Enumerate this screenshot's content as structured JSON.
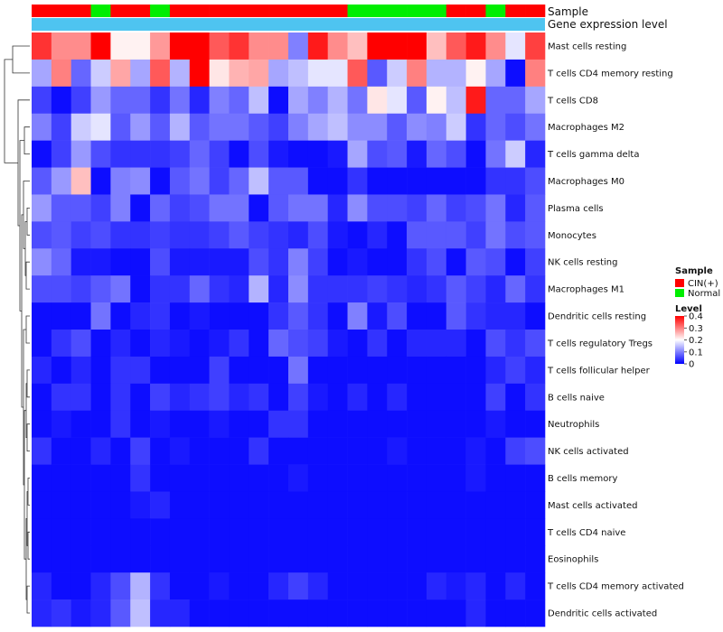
{
  "chart_data": {
    "type": "heatmap",
    "tracks": {
      "sample_label": "Sample",
      "expression_label": "Gene expression level"
    },
    "column_samples": [
      "CIN(+)",
      "CIN(+)",
      "CIN(+)",
      "Normal",
      "CIN(+)",
      "CIN(+)",
      "Normal",
      "CIN(+)",
      "CIN(+)",
      "CIN(+)",
      "CIN(+)",
      "CIN(+)",
      "CIN(+)",
      "CIN(+)",
      "CIN(+)",
      "CIN(+)",
      "Normal",
      "Normal",
      "Normal",
      "Normal",
      "Normal",
      "CIN(+)",
      "CIN(+)",
      "Normal",
      "CIN(+)",
      "CIN(+)"
    ],
    "rows": [
      {
        "name": "Mast cells resting",
        "values": [
          0.36,
          0.29,
          0.29,
          0.4,
          0.21,
          0.21,
          0.28,
          0.4,
          0.4,
          0.33,
          0.36,
          0.29,
          0.29,
          0.1,
          0.38,
          0.29,
          0.25,
          0.4,
          0.4,
          0.4,
          0.25,
          0.33,
          0.38,
          0.29,
          0.18,
          0.35
        ]
      },
      {
        "name": "T cells CD4 memory resting",
        "values": [
          0.13,
          0.3,
          0.08,
          0.16,
          0.27,
          0.13,
          0.33,
          0.14,
          0.4,
          0.22,
          0.26,
          0.27,
          0.13,
          0.15,
          0.18,
          0.18,
          0.33,
          0.07,
          0.16,
          0.3,
          0.14,
          0.14,
          0.21,
          0.13,
          0.01,
          0.3
        ]
      },
      {
        "name": "T cells CD8",
        "values": [
          0.05,
          0.01,
          0.05,
          0.12,
          0.08,
          0.08,
          0.04,
          0.09,
          0.03,
          0.1,
          0.08,
          0.15,
          0.01,
          0.13,
          0.1,
          0.14,
          0.09,
          0.22,
          0.18,
          0.07,
          0.21,
          0.15,
          0.38,
          0.08,
          0.08,
          0.13
        ]
      },
      {
        "name": "Macrophages M2",
        "values": [
          0.1,
          0.05,
          0.16,
          0.18,
          0.07,
          0.12,
          0.07,
          0.14,
          0.07,
          0.09,
          0.09,
          0.07,
          0.05,
          0.1,
          0.13,
          0.15,
          0.11,
          0.11,
          0.07,
          0.11,
          0.1,
          0.16,
          0.04,
          0.08,
          0.06,
          0.09
        ]
      },
      {
        "name": "T cells gamma delta",
        "values": [
          0.01,
          0.05,
          0.12,
          0.06,
          0.04,
          0.04,
          0.04,
          0.05,
          0.08,
          0.05,
          0.01,
          0.06,
          0.02,
          0.01,
          0.01,
          0.02,
          0.13,
          0.06,
          0.07,
          0.02,
          0.08,
          0.06,
          0.01,
          0.09,
          0.16,
          0.03
        ]
      },
      {
        "name": "Macrophages M0",
        "values": [
          0.07,
          0.12,
          0.25,
          0.01,
          0.1,
          0.11,
          0.01,
          0.07,
          0.09,
          0.05,
          0.08,
          0.15,
          0.07,
          0.07,
          0.01,
          0.01,
          0.04,
          0.01,
          0.01,
          0.01,
          0.01,
          0.01,
          0.01,
          0.04,
          0.04,
          0.06
        ]
      },
      {
        "name": "Plasma cells",
        "values": [
          0.12,
          0.07,
          0.07,
          0.05,
          0.1,
          0.01,
          0.08,
          0.05,
          0.06,
          0.09,
          0.09,
          0.01,
          0.07,
          0.09,
          0.09,
          0.03,
          0.11,
          0.06,
          0.06,
          0.05,
          0.08,
          0.05,
          0.06,
          0.09,
          0.03,
          0.07
        ]
      },
      {
        "name": "Monocytes",
        "values": [
          0.06,
          0.07,
          0.05,
          0.06,
          0.04,
          0.04,
          0.05,
          0.04,
          0.04,
          0.05,
          0.07,
          0.05,
          0.04,
          0.03,
          0.06,
          0.02,
          0.01,
          0.03,
          0.01,
          0.07,
          0.07,
          0.07,
          0.05,
          0.09,
          0.06,
          0.07
        ]
      },
      {
        "name": "NK cells resting",
        "values": [
          0.11,
          0.08,
          0.02,
          0.02,
          0.01,
          0.01,
          0.06,
          0.02,
          0.02,
          0.02,
          0.02,
          0.06,
          0.04,
          0.1,
          0.05,
          0.01,
          0.02,
          0.01,
          0.01,
          0.04,
          0.06,
          0.01,
          0.07,
          0.06,
          0.01,
          0.05
        ]
      },
      {
        "name": "Macrophages M1",
        "values": [
          0.06,
          0.06,
          0.05,
          0.07,
          0.09,
          0.01,
          0.04,
          0.04,
          0.08,
          0.04,
          0.03,
          0.14,
          0.03,
          0.11,
          0.04,
          0.04,
          0.04,
          0.05,
          0.04,
          0.03,
          0.04,
          0.07,
          0.05,
          0.03,
          0.08,
          0.04
        ]
      },
      {
        "name": "Dendritic cells resting",
        "values": [
          0.01,
          0.01,
          0.01,
          0.09,
          0.01,
          0.03,
          0.04,
          0.01,
          0.02,
          0.01,
          0.01,
          0.01,
          0.04,
          0.07,
          0.04,
          0.01,
          0.1,
          0.02,
          0.06,
          0.01,
          0.01,
          0.07,
          0.04,
          0.03,
          0.03,
          0.01
        ]
      },
      {
        "name": "T cells regulatory  Tregs",
        "values": [
          0.01,
          0.04,
          0.06,
          0.01,
          0.03,
          0.01,
          0.03,
          0.02,
          0.01,
          0.02,
          0.04,
          0.01,
          0.08,
          0.06,
          0.05,
          0.02,
          0.01,
          0.04,
          0.01,
          0.03,
          0.03,
          0.03,
          0.01,
          0.06,
          0.04,
          0.06
        ]
      },
      {
        "name": "T cells follicular helper",
        "values": [
          0.03,
          0.01,
          0.03,
          0.01,
          0.04,
          0.04,
          0.01,
          0.01,
          0.01,
          0.05,
          0.01,
          0.01,
          0.01,
          0.09,
          0.01,
          0.01,
          0.01,
          0.01,
          0.01,
          0.01,
          0.01,
          0.01,
          0.01,
          0.03,
          0.05,
          0.03
        ]
      },
      {
        "name": "B cells naive",
        "values": [
          0.01,
          0.04,
          0.04,
          0.01,
          0.04,
          0.01,
          0.05,
          0.03,
          0.04,
          0.05,
          0.03,
          0.04,
          0.01,
          0.05,
          0.02,
          0.01,
          0.03,
          0.01,
          0.03,
          0.01,
          0.01,
          0.01,
          0.01,
          0.05,
          0.01,
          0.04
        ]
      },
      {
        "name": "Neutrophils",
        "values": [
          0.01,
          0.02,
          0.01,
          0.01,
          0.04,
          0.01,
          0.02,
          0.01,
          0.01,
          0.02,
          0.01,
          0.01,
          0.04,
          0.04,
          0.01,
          0.01,
          0.01,
          0.01,
          0.01,
          0.01,
          0.01,
          0.01,
          0.01,
          0.02,
          0.01,
          0.01
        ]
      },
      {
        "name": "NK cells activated",
        "values": [
          0.04,
          0.01,
          0.01,
          0.03,
          0.01,
          0.05,
          0.01,
          0.02,
          0.01,
          0.01,
          0.01,
          0.04,
          0.01,
          0.01,
          0.01,
          0.01,
          0.01,
          0.01,
          0.02,
          0.01,
          0.01,
          0.01,
          0.02,
          0.01,
          0.05,
          0.06
        ]
      },
      {
        "name": "B cells memory",
        "values": [
          0.01,
          0.01,
          0.01,
          0.01,
          0.01,
          0.04,
          0.01,
          0.01,
          0.01,
          0.01,
          0.01,
          0.01,
          0.01,
          0.02,
          0.01,
          0.01,
          0.01,
          0.01,
          0.01,
          0.01,
          0.01,
          0.01,
          0.02,
          0.01,
          0.01,
          0.01
        ]
      },
      {
        "name": "Mast cells activated",
        "values": [
          0.01,
          0.01,
          0.01,
          0.01,
          0.01,
          0.02,
          0.03,
          0.01,
          0.01,
          0.01,
          0.01,
          0.01,
          0.01,
          0.01,
          0.01,
          0.01,
          0.01,
          0.01,
          0.01,
          0.01,
          0.01,
          0.01,
          0.01,
          0.01,
          0.01,
          0.01
        ]
      },
      {
        "name": "T cells CD4 naive",
        "values": [
          0.01,
          0.01,
          0.01,
          0.01,
          0.01,
          0.01,
          0.01,
          0.01,
          0.01,
          0.01,
          0.01,
          0.01,
          0.01,
          0.01,
          0.01,
          0.01,
          0.01,
          0.01,
          0.01,
          0.01,
          0.01,
          0.01,
          0.01,
          0.01,
          0.01,
          0.01
        ]
      },
      {
        "name": "Eosinophils",
        "values": [
          0.01,
          0.01,
          0.01,
          0.01,
          0.01,
          0.01,
          0.01,
          0.01,
          0.01,
          0.01,
          0.01,
          0.01,
          0.01,
          0.01,
          0.01,
          0.01,
          0.01,
          0.01,
          0.01,
          0.01,
          0.01,
          0.01,
          0.01,
          0.01,
          0.01,
          0.01
        ]
      },
      {
        "name": "T cells CD4 memory activated",
        "values": [
          0.03,
          0.01,
          0.01,
          0.03,
          0.06,
          0.14,
          0.04,
          0.01,
          0.01,
          0.02,
          0.01,
          0.01,
          0.03,
          0.05,
          0.03,
          0.01,
          0.01,
          0.01,
          0.01,
          0.01,
          0.03,
          0.02,
          0.03,
          0.01,
          0.03,
          0.01
        ]
      },
      {
        "name": "Dendritic cells activated",
        "values": [
          0.03,
          0.04,
          0.02,
          0.03,
          0.07,
          0.15,
          0.03,
          0.03,
          0.01,
          0.01,
          0.01,
          0.01,
          0.01,
          0.01,
          0.01,
          0.01,
          0.01,
          0.01,
          0.01,
          0.01,
          0.01,
          0.01,
          0.03,
          0.01,
          0.01,
          0.01
        ]
      }
    ],
    "legend": {
      "sample_title": "Sample",
      "sample_entries": [
        {
          "label": "CIN(+)",
          "color": "#ff0000"
        },
        {
          "label": "Normal",
          "color": "#00ee00"
        }
      ],
      "level_title": "Level",
      "level_ticks": [
        "0.4",
        "0.3",
        "0.2",
        "0.1",
        "0"
      ],
      "level_range": [
        0,
        0.4
      ]
    },
    "colors": {
      "low": "#0000ff",
      "mid": "#ffffff",
      "high": "#ff0000",
      "expression_track": "#4ec4f0"
    },
    "dendrogram": "left"
  }
}
